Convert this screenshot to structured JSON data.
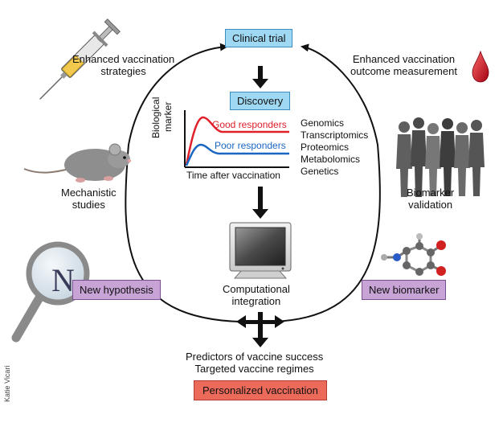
{
  "top_box": "Clinical trial",
  "discovery_box": "Discovery",
  "chart": {
    "ylabel_line1": "Biological",
    "ylabel_line2": "marker",
    "xlabel": "Time after vaccination",
    "good_label": "Good responders",
    "poor_label": "Poor responders",
    "good_color": "#e0202a",
    "poor_color": "#1a66c2"
  },
  "omics": [
    "Genomics",
    "Transcriptomics",
    "Proteomics",
    "Metabolomics",
    "Genetics"
  ],
  "left_top_label": [
    "Enhanced vaccination",
    "strategies"
  ],
  "right_top_label": [
    "Enhanced vaccination",
    "outcome measurement"
  ],
  "mechanistic_label": [
    "Mechanistic",
    "studies"
  ],
  "biomarker_validation_label": [
    "Biomarker",
    "validation"
  ],
  "computational_label": [
    "Computational",
    "integration"
  ],
  "new_hypothesis_box": "New hypothesis",
  "new_biomarker_box": "New biomarker",
  "magnifier_letter": "N",
  "predictors_label": [
    "Predictors of vaccine success",
    "Targeted vaccine regimes"
  ],
  "personalized_box": "Personalized vaccination",
  "credit": "Katie Vicari",
  "colors": {
    "blue_box": "#9fd8f2",
    "purple_box": "#c7a3d6",
    "red_box": "#ec6a5a",
    "drop": "#c8102e"
  }
}
